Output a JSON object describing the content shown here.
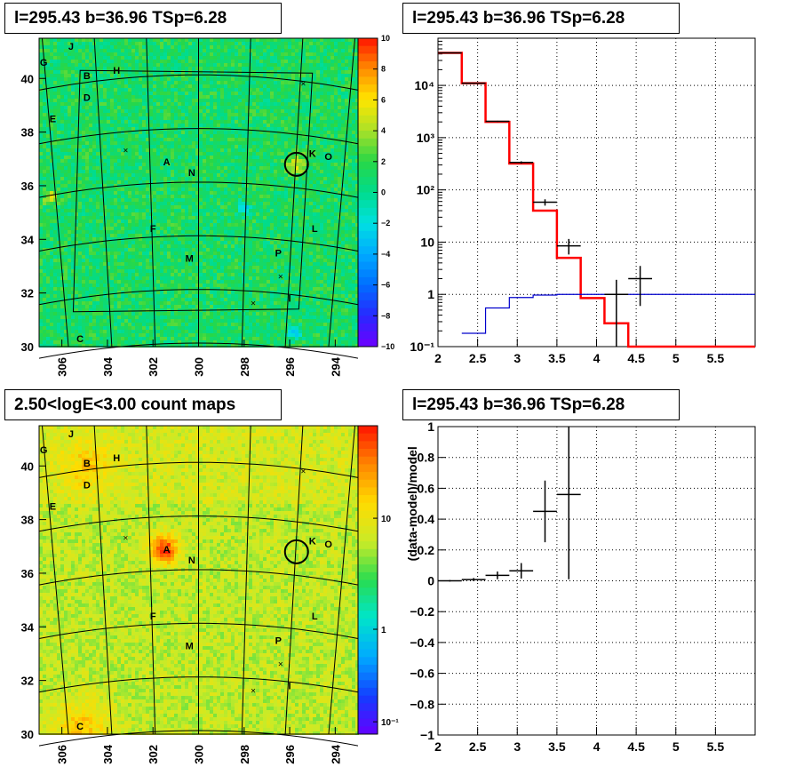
{
  "panels": {
    "top_left_title": "l=295.43 b=36.96 TSp=6.28",
    "top_right_title": "l=295.43 b=36.96 TSp=6.28",
    "bottom_left_title": "2.50<logE<3.00 count maps",
    "bottom_right_title": "l=295.43 b=36.96 TSp=6.28"
  },
  "chart_data": [
    {
      "type": "heatmap",
      "title": "l=295.43 b=36.96 TSp=6.28",
      "x_ticks": [
        "306",
        "304",
        "302",
        "300",
        "298",
        "296",
        "294"
      ],
      "y_ticks": [
        "30",
        "32",
        "34",
        "36",
        "38",
        "40"
      ],
      "xlim": [
        307,
        293
      ],
      "ylim": [
        30,
        41.5
      ],
      "colorbar": {
        "scale": "linear",
        "range": [
          -10,
          10
        ],
        "ticks": [
          "10",
          "8",
          "6",
          "4",
          "2",
          "0",
          "−2",
          "−4",
          "−6",
          "−8",
          "−10"
        ]
      },
      "grid": "galactic-coordinate lines",
      "source_labels": [
        {
          "text": "J",
          "l": 305.6,
          "b": 41.2
        },
        {
          "text": "G",
          "l": 306.8,
          "b": 40.6
        },
        {
          "text": "B",
          "l": 304.9,
          "b": 40.1
        },
        {
          "text": "H",
          "l": 303.6,
          "b": 40.3
        },
        {
          "text": "D",
          "l": 304.9,
          "b": 39.3
        },
        {
          "text": "E",
          "l": 306.4,
          "b": 38.5
        },
        {
          "text": "A",
          "l": 301.4,
          "b": 36.9
        },
        {
          "text": "N",
          "l": 300.3,
          "b": 36.5
        },
        {
          "text": "K",
          "l": 295.0,
          "b": 37.2
        },
        {
          "text": "O",
          "l": 294.3,
          "b": 37.1
        },
        {
          "text": "F",
          "l": 302.0,
          "b": 34.4
        },
        {
          "text": "L",
          "l": 294.9,
          "b": 34.4
        },
        {
          "text": "M",
          "l": 300.4,
          "b": 33.3
        },
        {
          "text": "P",
          "l": 296.5,
          "b": 33.5
        },
        {
          "text": "I",
          "l": 296.0,
          "b": 31.8
        },
        {
          "text": "C",
          "l": 305.2,
          "b": 30.3
        }
      ],
      "circle": {
        "l": 295.7,
        "b": 36.8
      }
    },
    {
      "type": "line",
      "title": "l=295.43 b=36.96 TSp=6.28",
      "xlim": [
        2,
        6
      ],
      "ylim": [
        0.1,
        80000
      ],
      "yscale": "log",
      "x_ticks": [
        "2",
        "2.5",
        "3",
        "3.5",
        "4",
        "4.5",
        "5",
        "5.5"
      ],
      "y_ticks": [
        "10⁻¹",
        "1",
        "10",
        "10²",
        "10³",
        "10⁴"
      ],
      "grid": true,
      "series": [
        {
          "role": "model-total",
          "color": "#ff0000",
          "edges": [
            2,
            2.3,
            2.6,
            2.9,
            3.2,
            3.5,
            3.8,
            4.1,
            4.4,
            6
          ],
          "values": [
            42000,
            11000,
            2000,
            320,
            40,
            5,
            0.85,
            0.28,
            0.1
          ]
        },
        {
          "role": "source-model",
          "color": "#0000cc",
          "edges": [
            2.3,
            2.6,
            2.9,
            3.2,
            3.5,
            3.8,
            6
          ],
          "values": [
            0.18,
            0.55,
            0.87,
            0.97,
            1.0,
            1.0
          ]
        },
        {
          "role": "data",
          "color": "#000000",
          "points": [
            {
              "x": 2.15,
              "y": 42000,
              "xerr": 0.15,
              "ylo": 41800,
              "yhi": 42200
            },
            {
              "x": 2.45,
              "y": 11000,
              "xerr": 0.15,
              "ylo": 10900,
              "yhi": 11100
            },
            {
              "x": 2.75,
              "y": 2050,
              "xerr": 0.15,
              "ylo": 2000,
              "yhi": 2100
            },
            {
              "x": 3.05,
              "y": 335,
              "xerr": 0.15,
              "ylo": 318,
              "yhi": 352
            },
            {
              "x": 3.35,
              "y": 58,
              "xerr": 0.15,
              "ylo": 50,
              "yhi": 66
            },
            {
              "x": 3.65,
              "y": 8.5,
              "xerr": 0.15,
              "ylo": 5.8,
              "yhi": 11.5
            },
            {
              "x": 4.25,
              "y": 1.0,
              "xerr": 0.15,
              "ylo": 0.1,
              "yhi": 1.9
            },
            {
              "x": 4.55,
              "y": 2.0,
              "xerr": 0.15,
              "ylo": 0.6,
              "yhi": 3.5
            }
          ]
        }
      ]
    },
    {
      "type": "heatmap",
      "title": "2.50<logE<3.00 count maps",
      "x_ticks": [
        "306",
        "304",
        "302",
        "300",
        "298",
        "296",
        "294"
      ],
      "y_ticks": [
        "30",
        "32",
        "34",
        "36",
        "38",
        "40"
      ],
      "xlim": [
        307,
        293
      ],
      "ylim": [
        30,
        41.5
      ],
      "colorbar": {
        "scale": "log",
        "ticks": [
          "10",
          "1",
          "10⁻¹"
        ]
      },
      "bright_source": {
        "label": "A",
        "l": 301.5,
        "b": 36.9
      },
      "circle": {
        "l": 295.7,
        "b": 36.8
      }
    },
    {
      "type": "scatter",
      "title": "l=295.43 b=36.96 TSp=6.28",
      "ylabel": "(data-model)/model",
      "xlim": [
        2,
        6
      ],
      "ylim": [
        -1,
        1
      ],
      "x_ticks": [
        "2",
        "2.5",
        "3",
        "3.5",
        "4",
        "4.5",
        "5",
        "5.5"
      ],
      "y_ticks": [
        "1",
        "0.8",
        "0.6",
        "0.4",
        "0.2",
        "0",
        "−0.2",
        "−0.4",
        "−0.6",
        "−0.8",
        "−1"
      ],
      "grid": true,
      "points": [
        {
          "x": 2.15,
          "y": 0.0,
          "xerr": 0.15,
          "yerr": 0.005
        },
        {
          "x": 2.45,
          "y": 0.008,
          "xerr": 0.15,
          "yerr": 0.01
        },
        {
          "x": 2.75,
          "y": 0.035,
          "xerr": 0.15,
          "yerr": 0.025
        },
        {
          "x": 3.05,
          "y": 0.065,
          "xerr": 0.15,
          "yerr": 0.05
        },
        {
          "x": 3.35,
          "y": 0.45,
          "xerr": 0.15,
          "yerr": 0.2
        },
        {
          "x": 3.65,
          "y": 0.56,
          "xerr": 0.15,
          "yerr": 0.55
        }
      ]
    }
  ]
}
